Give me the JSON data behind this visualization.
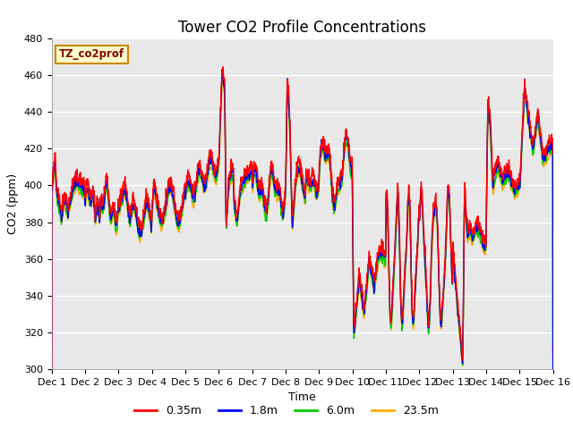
{
  "title": "Tower CO2 Profile Concentrations",
  "xlabel": "Time",
  "ylabel": "CO2 (ppm)",
  "ylim": [
    300,
    480
  ],
  "yticks": [
    300,
    320,
    340,
    360,
    380,
    400,
    420,
    440,
    460,
    480
  ],
  "colors": {
    "0.35m": "#ff0000",
    "1.8m": "#0000ff",
    "6.0m": "#00cc00",
    "23.5m": "#ffaa00"
  },
  "legend_label": "TZ_co2prof",
  "legend_box_color": "#ffffcc",
  "legend_box_edge": "#cc8800",
  "plot_bg_color": "#e8e8e8",
  "grid_color": "#ffffff",
  "x_tick_labels": [
    "Dec 1",
    "Dec 2",
    "Dec 3",
    "Dec 4",
    "Dec 5",
    "Dec 6",
    "Dec 7",
    "Dec 8",
    "Dec 9",
    "Dec 10",
    "Dec 11",
    "Dec 12",
    "Dec 13",
    "Dec 14",
    "Dec 15",
    "Dec 16"
  ],
  "title_fontsize": 12,
  "axis_fontsize": 9,
  "tick_fontsize": 8
}
